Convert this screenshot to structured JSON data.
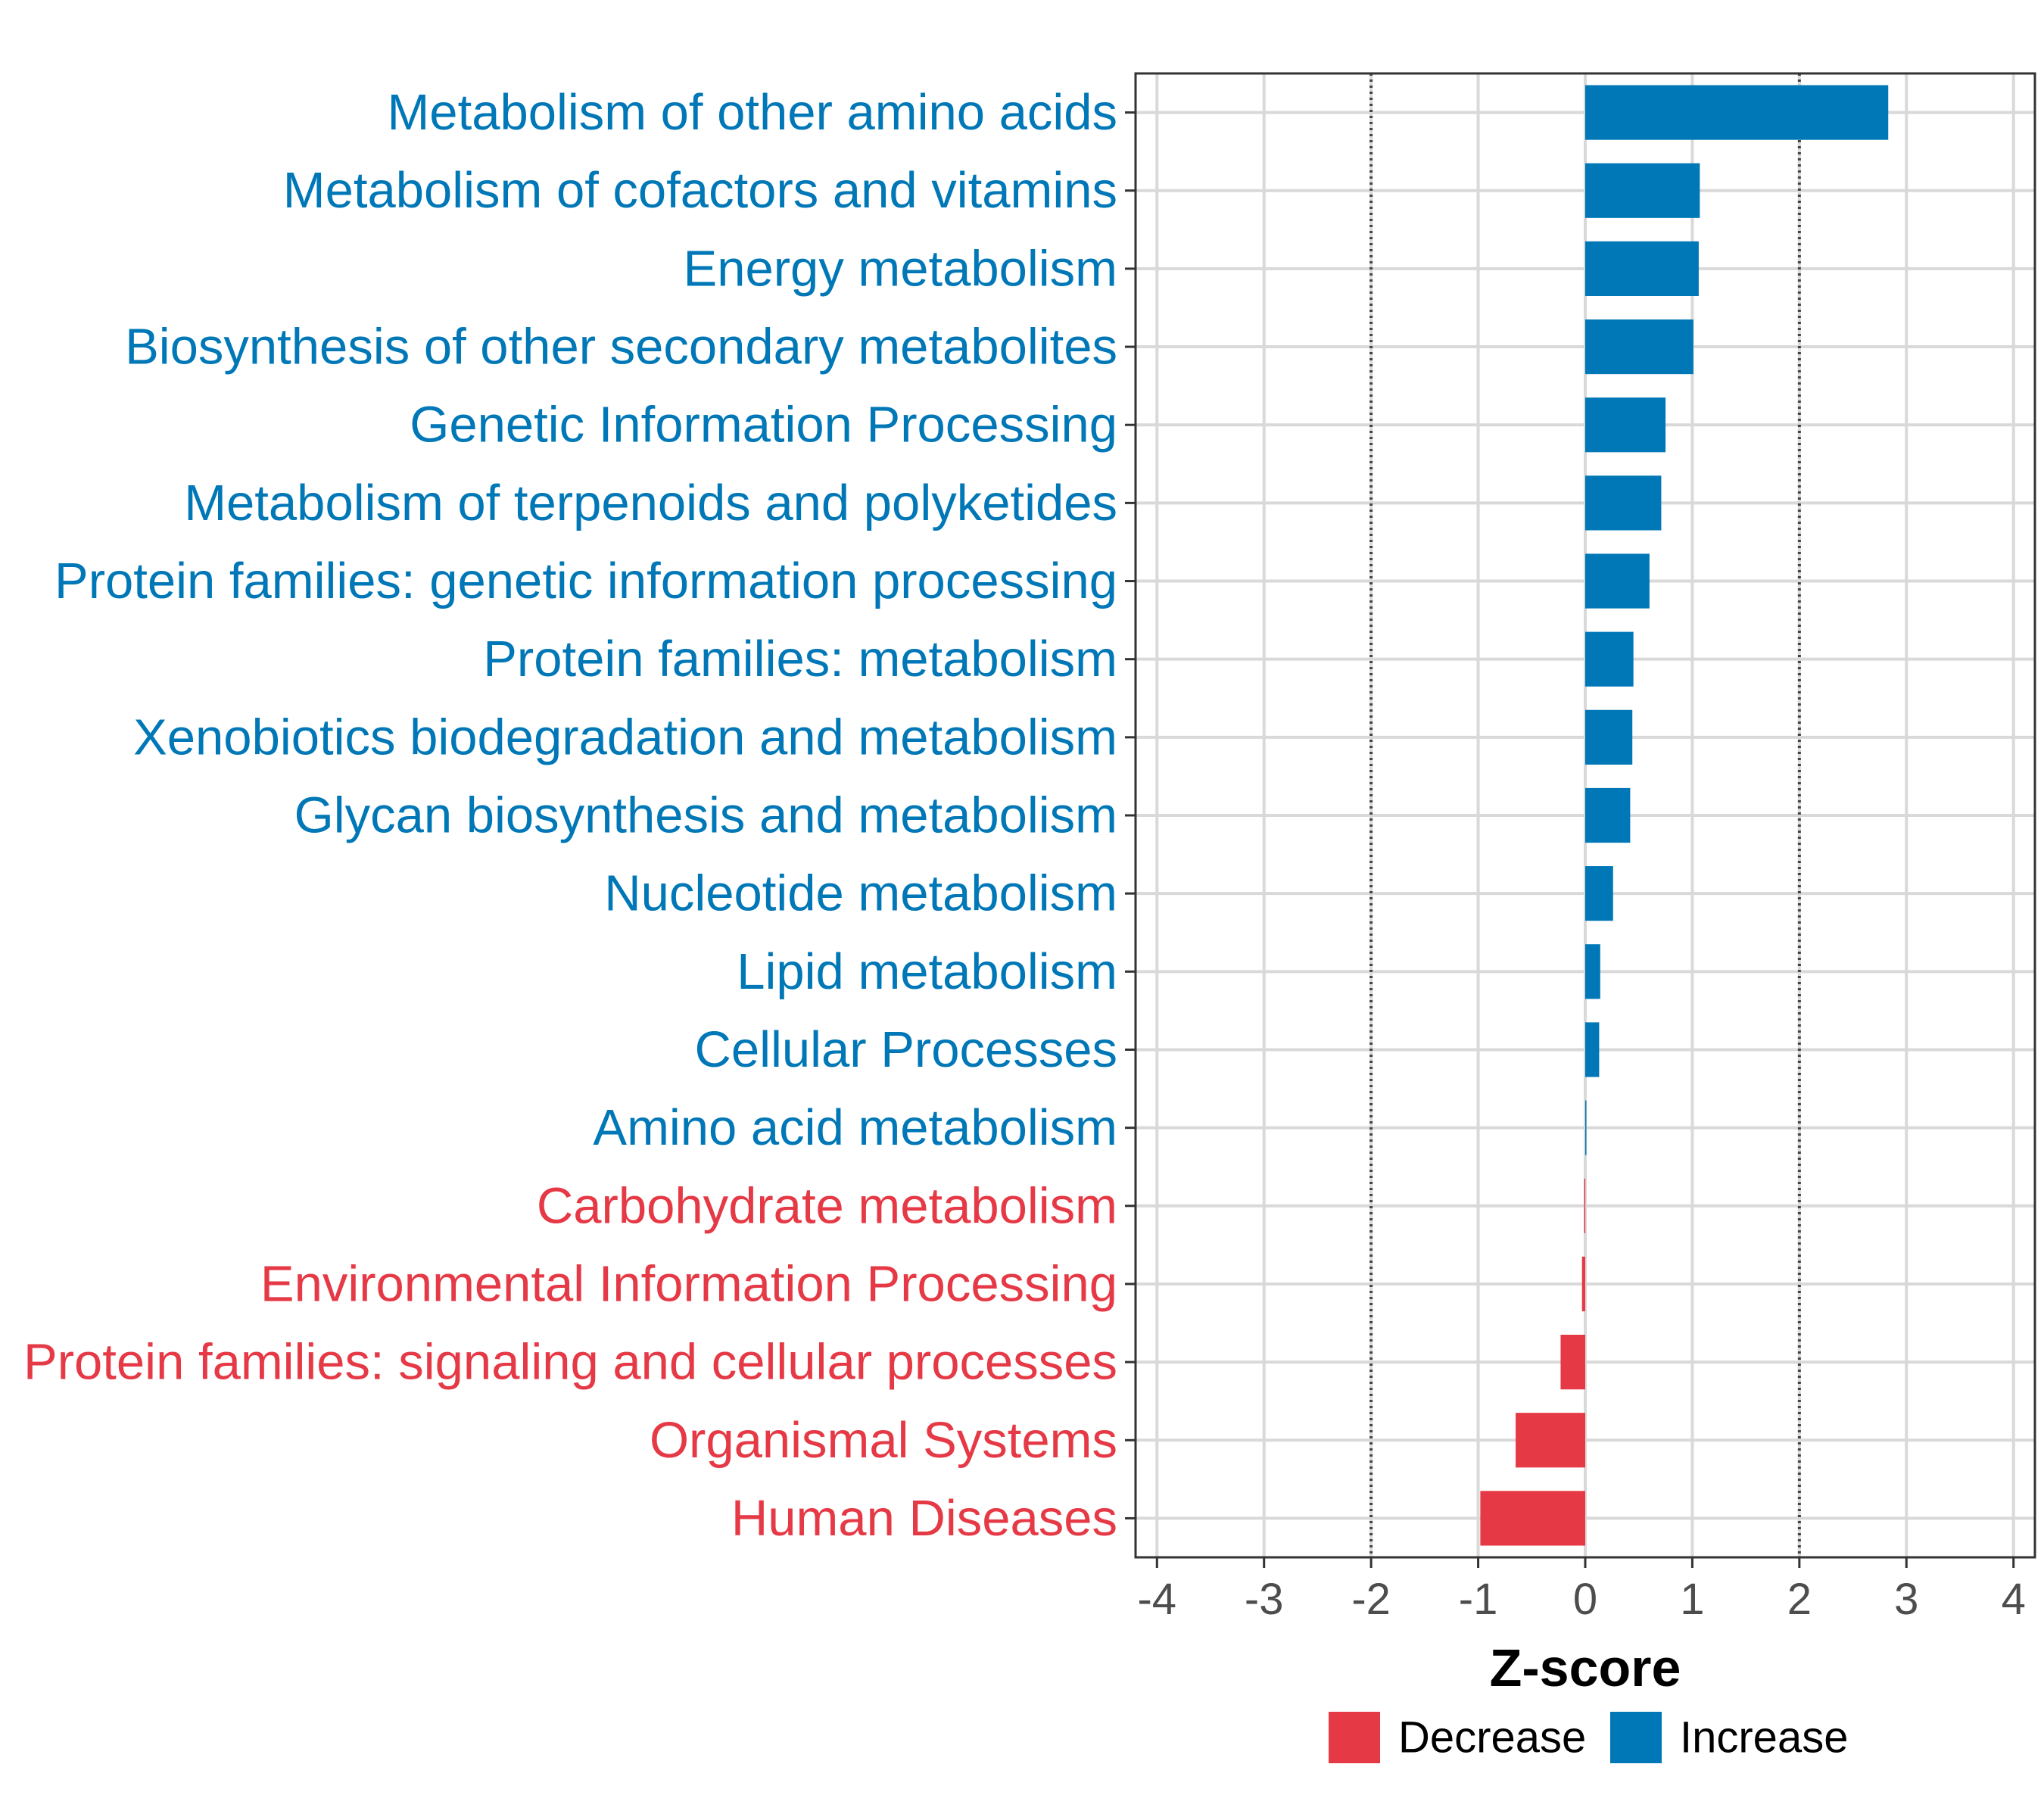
{
  "chart_data": {
    "type": "bar",
    "orientation": "horizontal",
    "title": "",
    "xlabel": "Z-score",
    "ylabel": "",
    "xlim": [
      -4.2,
      4.2
    ],
    "xticks": [
      -4,
      -3,
      -2,
      -1,
      0,
      1,
      2,
      3,
      4
    ],
    "reference_lines": [
      -2,
      2
    ],
    "grid": true,
    "legend_position": "bottom",
    "colors": {
      "Decrease": "#e63946",
      "Increase": "#0077b6"
    },
    "legend": [
      {
        "label": "Decrease",
        "group": "Decrease"
      },
      {
        "label": "Increase",
        "group": "Increase"
      }
    ],
    "categories": [
      "Metabolism of other amino acids",
      "Metabolism of cofactors and vitamins",
      "Energy metabolism",
      "Biosynthesis of other secondary metabolites",
      "Genetic Information Processing",
      "Metabolism of terpenoids and polyketides",
      "Protein families: genetic information processing",
      "Protein families: metabolism",
      "Xenobiotics biodegradation and metabolism",
      "Glycan biosynthesis and metabolism",
      "Nucleotide metabolism",
      "Lipid metabolism",
      "Cellular Processes",
      "Amino acid metabolism",
      "Carbohydrate metabolism",
      "Environmental Information Processing",
      "Protein families: signaling and cellular processes",
      "Organismal Systems",
      "Human Diseases"
    ],
    "values": [
      2.83,
      1.07,
      1.06,
      1.01,
      0.75,
      0.71,
      0.6,
      0.45,
      0.44,
      0.42,
      0.26,
      0.14,
      0.13,
      0.01,
      -0.01,
      -0.03,
      -0.23,
      -0.65,
      -0.98
    ],
    "groups": [
      "Increase",
      "Increase",
      "Increase",
      "Increase",
      "Increase",
      "Increase",
      "Increase",
      "Increase",
      "Increase",
      "Increase",
      "Increase",
      "Increase",
      "Increase",
      "Increase",
      "Decrease",
      "Decrease",
      "Decrease",
      "Decrease",
      "Decrease"
    ]
  }
}
